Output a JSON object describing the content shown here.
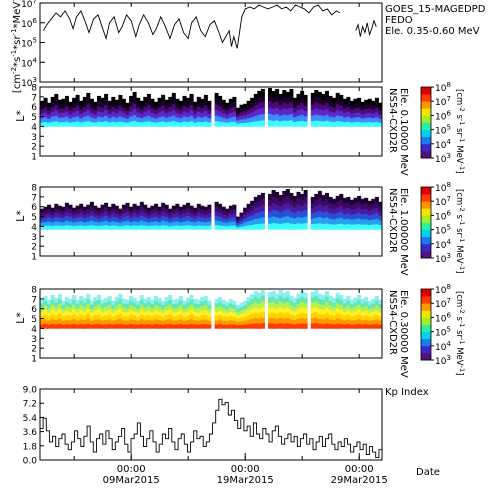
{
  "chart_data": [
    {
      "type": "line",
      "panel": "goes",
      "side_title": "GOES_15-MAGEDPD",
      "side_lines": [
        "FEDO",
        "Ele. 0.35-0.60 MeV"
      ],
      "ylabel": "[cm^-2*s^-1*sr^-1*MeV^-1]",
      "y_scale": "log",
      "ylim": [
        1000,
        10000000
      ],
      "y_ticks": [
        {
          "v": 3,
          "label": "10^3"
        },
        {
          "v": 4,
          "label": "10^4"
        },
        {
          "v": 5,
          "label": "10^5"
        },
        {
          "v": 6,
          "label": "10^6"
        },
        {
          "v": 7,
          "label": "10^7"
        }
      ],
      "xlim": [
        0,
        30
      ],
      "segments": [
        [
          [
            0.3,
            5.6
          ],
          [
            0.6,
            5.9
          ],
          [
            1.0,
            6.2
          ],
          [
            1.4,
            6.5
          ],
          [
            1.8,
            6.3
          ],
          [
            2.2,
            6.6
          ],
          [
            2.6,
            6.2
          ],
          [
            2.9,
            5.7
          ],
          [
            3.2,
            6.3
          ],
          [
            3.6,
            6.6
          ],
          [
            4.0,
            6.0
          ],
          [
            4.3,
            5.5
          ],
          [
            4.7,
            6.2
          ],
          [
            5.1,
            6.4
          ],
          [
            5.5,
            5.7
          ],
          [
            5.8,
            5.2
          ],
          [
            6.1,
            6.0
          ],
          [
            6.5,
            6.3
          ],
          [
            6.9,
            5.5
          ],
          [
            7.2,
            5.8
          ],
          [
            7.6,
            6.4
          ],
          [
            8.0,
            6.1
          ],
          [
            8.4,
            5.3
          ],
          [
            8.7,
            5.9
          ],
          [
            9.1,
            6.4
          ],
          [
            9.5,
            6.0
          ],
          [
            9.9,
            5.4
          ],
          [
            10.2,
            5.7
          ],
          [
            10.6,
            6.3
          ],
          [
            11.0,
            5.8
          ],
          [
            11.4,
            5.2
          ],
          [
            11.8,
            5.9
          ],
          [
            12.2,
            6.2
          ],
          [
            12.6,
            5.5
          ],
          [
            13.0,
            5.2
          ],
          [
            13.3,
            6.0
          ],
          [
            13.7,
            6.3
          ],
          [
            14.1,
            5.6
          ],
          [
            14.5,
            5.3
          ],
          [
            14.9,
            5.9
          ],
          [
            15.3,
            6.1
          ],
          [
            15.7,
            5.5
          ],
          [
            16.0,
            5.0
          ],
          [
            16.3,
            5.3
          ],
          [
            16.6,
            5.6
          ],
          [
            16.8,
            4.8
          ],
          [
            17.0,
            5.3
          ],
          [
            17.3,
            4.7
          ],
          [
            17.5,
            5.5
          ],
          [
            17.7,
            6.3
          ],
          [
            18.0,
            6.7
          ],
          [
            18.4,
            6.8
          ],
          [
            18.8,
            6.7
          ],
          [
            19.2,
            6.9
          ],
          [
            19.6,
            6.8
          ],
          [
            20.0,
            6.7
          ],
          [
            20.4,
            6.8
          ],
          [
            20.8,
            6.9
          ],
          [
            21.2,
            6.7
          ],
          [
            21.6,
            6.8
          ],
          [
            22.0,
            6.6
          ],
          [
            22.4,
            6.9
          ],
          [
            22.8,
            6.8
          ],
          [
            23.2,
            6.7
          ],
          [
            23.6,
            6.5
          ],
          [
            24.0,
            6.8
          ],
          [
            24.4,
            6.9
          ],
          [
            24.8,
            6.6
          ],
          [
            25.2,
            6.7
          ],
          [
            25.6,
            6.4
          ],
          [
            26.0,
            6.6
          ],
          [
            26.3,
            6.5
          ]
        ],
        [
          [
            27.7,
            5.6
          ],
          [
            27.9,
            5.9
          ],
          [
            28.1,
            5.3
          ],
          [
            28.3,
            5.8
          ],
          [
            28.5,
            5.5
          ],
          [
            28.7,
            6.0
          ],
          [
            28.9,
            5.4
          ],
          [
            29.1,
            5.7
          ],
          [
            29.3,
            6.1
          ],
          [
            29.5,
            5.8
          ]
        ]
      ]
    },
    {
      "type": "heatmap",
      "panel": "ns54-0.1",
      "side_title": "NS54-CXD2R",
      "side_sub": "Ele. 0.10000 MeV",
      "ylabel": "L*",
      "ylim": [
        1,
        8
      ],
      "y_ticks": [
        "1",
        "2",
        "3",
        "4",
        "5",
        "6",
        "7",
        "8"
      ],
      "xlim": [
        0,
        30
      ],
      "colorbar_label": "[cm^-2 s^-1 sr^-1 MeV^-1]",
      "colorbar_ticks": [
        "10^3",
        "10^4",
        "10^5",
        "10^6",
        "10^7",
        "10^8"
      ],
      "base_log_flux": 7.8,
      "floor": 4.0,
      "colors": [
        "#3cfcfc",
        "#3c8cfc",
        "#5a28c8",
        "#4b0a78",
        "#180028",
        "#000000"
      ],
      "tops": [
        6.6,
        6.9,
        6.4,
        7.0,
        7.3,
        6.7,
        6.8,
        7.1,
        6.5,
        6.9,
        7.2,
        6.6,
        7.0,
        7.4,
        6.8,
        6.5,
        7.1,
        6.9,
        7.3,
        6.6,
        7.0,
        6.7,
        7.2,
        6.8,
        6.4,
        7.1,
        7.5,
        6.9,
        6.6,
        7.0,
        7.3,
        6.8,
        6.5,
        6.9,
        7.2,
        6.7,
        7.0,
        7.4,
        6.8,
        6.6,
        7.1,
        6.9,
        7.3,
        6.5,
        7.0,
        6.8,
        7.2,
        6.6,
        6.9,
        7.4,
        7.1,
        6.7,
        6.4,
        6.8,
        7.0,
        5.9,
        6.2,
        6.3,
        6.6,
        6.9,
        7.3,
        7.6,
        7.8,
        7.4,
        7.9,
        7.6,
        7.8,
        7.3,
        7.7,
        7.5,
        7.8,
        6.9,
        7.3,
        7.6,
        7.2,
        7.0,
        7.4,
        7.7,
        7.5,
        7.3,
        7.6,
        7.1,
        6.9,
        7.4,
        7.2,
        6.8,
        7.0,
        6.6,
        6.8,
        6.9,
        6.5,
        6.7,
        6.8,
        6.6,
        6.9,
        6.4
      ],
      "gaps": [
        [
          14.9,
          15.2
        ],
        [
          19.7,
          19.9
        ],
        [
          23.3,
          23.6
        ]
      ]
    },
    {
      "type": "heatmap",
      "panel": "ns54-1.0",
      "side_title": "NS54-CXD2R",
      "side_sub": "Ele. 1.00000 MeV",
      "ylabel": "L*",
      "ylim": [
        1,
        8
      ],
      "y_ticks": [
        "1",
        "2",
        "3",
        "4",
        "5",
        "6",
        "7",
        "8"
      ],
      "xlim": [
        0,
        30
      ],
      "colorbar_label": "[cm^-2 s^-1 sr^-1 MeV^-1]",
      "colorbar_ticks": [
        "10^3",
        "10^4",
        "10^5",
        "10^6",
        "10^7",
        "10^8"
      ],
      "base_log_flux": 6.2,
      "floor": 3.7,
      "colors": [
        "#3cfcfc",
        "#28a0f0",
        "#2850d8",
        "#4b1aa0",
        "#3c0a64",
        "#1e0032"
      ],
      "tops": [
        5.8,
        6.0,
        6.2,
        5.9,
        6.3,
        6.1,
        6.0,
        6.4,
        6.2,
        5.9,
        6.1,
        6.3,
        6.0,
        6.2,
        6.5,
        6.1,
        5.9,
        6.2,
        6.4,
        6.0,
        6.3,
        6.1,
        5.8,
        6.2,
        6.4,
        6.0,
        6.3,
        6.1,
        6.5,
        6.2,
        5.9,
        6.1,
        6.3,
        6.0,
        6.4,
        6.2,
        5.8,
        6.1,
        6.3,
        6.0,
        6.2,
        6.4,
        6.1,
        5.9,
        6.3,
        6.1,
        6.0,
        6.2,
        6.4,
        6.5,
        6.3,
        6.0,
        5.8,
        6.1,
        6.2,
        5.0,
        5.4,
        5.9,
        6.3,
        6.6,
        7.0,
        7.2,
        7.4,
        7.6,
        7.3,
        7.7,
        7.5,
        7.2,
        7.6,
        7.8,
        7.4,
        7.1,
        7.5,
        7.3,
        7.7,
        7.4,
        7.0,
        7.3,
        7.6,
        7.2,
        7.4,
        7.0,
        6.8,
        7.1,
        7.3,
        6.9,
        7.0,
        6.7,
        6.9,
        7.1,
        6.8,
        6.9,
        6.6,
        6.8,
        7.0,
        6.5
      ],
      "gaps": [
        [
          14.9,
          15.2
        ],
        [
          19.7,
          19.9
        ],
        [
          23.3,
          23.6
        ]
      ]
    },
    {
      "type": "heatmap",
      "panel": "ns54-0.3",
      "side_title": "NS54-CXD2R",
      "side_sub": "Ele. 0.30000 MeV",
      "ylabel": "L*",
      "ylim": [
        1,
        8
      ],
      "y_ticks": [
        "1",
        "2",
        "3",
        "4",
        "5",
        "6",
        "7",
        "8"
      ],
      "xlim": [
        0,
        30
      ],
      "colorbar_label": "[cm^-2 s^-1 sr^-1 MeV^-1]",
      "colorbar_ticks": [
        "10^3",
        "10^4",
        "10^5",
        "10^6",
        "10^7",
        "10^8"
      ],
      "base_log_flux": 7.0,
      "floor": 4.0,
      "colors": [
        "#ff3c00",
        "#ff9600",
        "#ffd200",
        "#fff028",
        "#b4f050",
        "#64e6b4",
        "#8cf0f0"
      ],
      "tops": [
        7.0,
        7.3,
        6.9,
        7.4,
        7.1,
        7.5,
        6.8,
        7.2,
        7.0,
        7.4,
        6.9,
        7.3,
        7.1,
        7.5,
        6.8,
        7.2,
        7.4,
        6.9,
        7.1,
        7.3,
        6.8,
        7.2,
        7.5,
        7.0,
        6.9,
        7.3,
        7.1,
        6.8,
        7.4,
        7.0,
        7.2,
        6.9,
        7.3,
        7.1,
        6.8,
        7.2,
        7.4,
        6.9,
        7.0,
        7.3,
        6.8,
        7.1,
        7.4,
        7.0,
        6.9,
        7.2,
        7.3,
        6.8,
        7.1,
        7.0,
        7.2,
        6.9,
        6.7,
        7.0,
        6.8,
        6.4,
        6.6,
        6.8,
        7.2,
        7.5,
        7.8,
        7.6,
        7.9,
        7.4,
        7.7,
        7.8,
        7.5,
        7.9,
        7.6,
        7.8,
        7.3,
        7.1,
        7.5,
        7.8,
        7.6,
        7.3,
        7.7,
        7.9,
        7.5,
        7.4,
        7.8,
        7.3,
        7.1,
        7.6,
        7.4,
        7.0,
        7.3,
        6.9,
        7.1,
        7.4,
        7.0,
        7.2,
        6.8,
        7.0,
        7.3,
        6.9
      ],
      "gaps": [
        [
          14.9,
          15.2
        ],
        [
          19.7,
          19.9
        ],
        [
          23.3,
          23.6
        ]
      ]
    },
    {
      "type": "line",
      "panel": "kp",
      "side_title": "Kp Index",
      "ylim": [
        0,
        9
      ],
      "y_ticks": [
        "0.0",
        "1.8",
        "3.6",
        "5.4",
        "7.2",
        "9.0"
      ],
      "xlim": [
        0,
        30
      ],
      "values": [
        4.0,
        5.3,
        3.7,
        2.3,
        3.0,
        1.7,
        2.7,
        3.3,
        2.0,
        1.3,
        2.3,
        3.7,
        2.7,
        1.7,
        3.0,
        4.3,
        2.3,
        1.0,
        2.7,
        3.3,
        2.0,
        3.7,
        2.7,
        1.3,
        2.3,
        3.0,
        4.0,
        2.0,
        1.0,
        2.7,
        3.3,
        4.7,
        3.0,
        1.7,
        2.7,
        3.7,
        2.3,
        1.0,
        2.0,
        3.3,
        2.7,
        4.0,
        2.3,
        1.3,
        2.7,
        3.3,
        2.0,
        1.0,
        2.3,
        3.7,
        2.7,
        3.0,
        1.7,
        2.3,
        3.3,
        4.7,
        6.3,
        7.7,
        7.0,
        7.3,
        5.7,
        6.3,
        5.0,
        4.0,
        5.3,
        3.7,
        4.3,
        3.0,
        4.7,
        3.3,
        2.7,
        4.0,
        3.3,
        2.3,
        3.7,
        4.3,
        3.0,
        2.0,
        2.7,
        3.3,
        2.3,
        3.0,
        1.7,
        2.7,
        3.3,
        2.0,
        2.7,
        1.3,
        2.3,
        3.0,
        1.7,
        2.7,
        3.3,
        2.0,
        1.3,
        2.3,
        1.7,
        2.7,
        2.0,
        1.0,
        1.7,
        2.3,
        1.3,
        2.0,
        0.7,
        1.7,
        1.0,
        0.3,
        1.3
      ],
      "x_tick_labels": [
        {
          "day": 8.0,
          "time": "00:00",
          "date": "09Mar2015"
        },
        {
          "day": 18.0,
          "time": "00:00",
          "date": "19Mar2015"
        },
        {
          "day": 28.0,
          "time": "00:00",
          "date": "29Mar2015"
        }
      ],
      "x_minor_ticks": [
        3,
        8,
        13,
        18,
        23,
        28
      ],
      "date_label": "Date"
    }
  ]
}
